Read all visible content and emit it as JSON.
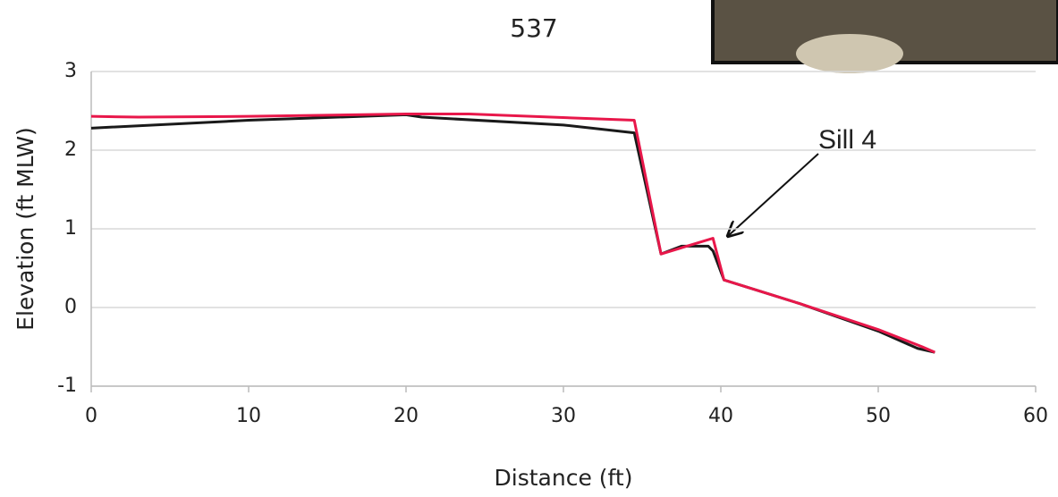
{
  "chart_data": {
    "type": "line",
    "title": "537",
    "x_label": "Distance (ft)",
    "y_label": "Elevation (ft MLW)",
    "annotation": "Sill 4",
    "xlim": [
      0,
      60
    ],
    "ylim": [
      -1,
      3
    ],
    "xticks": [
      0,
      10,
      20,
      30,
      40,
      50,
      60
    ],
    "yticks": [
      -1,
      0,
      1,
      2,
      3
    ],
    "grid": true,
    "series": [
      {
        "color": "#1a1a1a",
        "x": [
          0,
          10,
          20,
          21,
          30,
          34.5,
          36.2,
          37.5,
          39.2,
          39.5,
          40.2,
          45,
          50,
          52.5,
          53.6
        ],
        "values": [
          2.28,
          2.38,
          2.45,
          2.42,
          2.32,
          2.22,
          0.68,
          0.78,
          0.78,
          0.72,
          0.35,
          0.05,
          -0.3,
          -0.52,
          -0.57
        ]
      },
      {
        "color": "#e8174a",
        "x": [
          0,
          3,
          10,
          20,
          24,
          34.5,
          36.2,
          39.5,
          40.2,
          45,
          50,
          52.8,
          53.6
        ],
        "values": [
          2.43,
          2.42,
          2.43,
          2.46,
          2.46,
          2.38,
          0.68,
          0.88,
          0.35,
          0.05,
          -0.28,
          -0.5,
          -0.57
        ]
      }
    ]
  }
}
